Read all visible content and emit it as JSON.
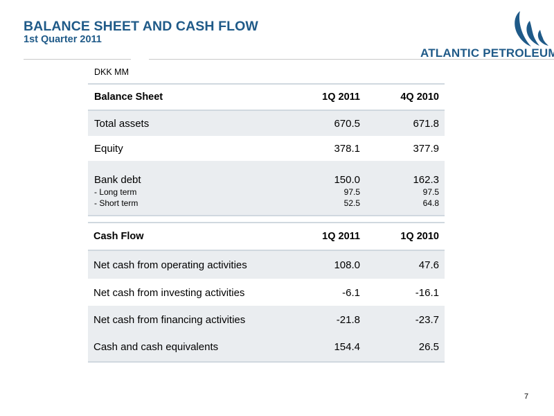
{
  "header": {
    "title": "BALANCE SHEET AND CASH FLOW",
    "subtitle": "1st Quarter 2011",
    "logo_text": "ATLANTIC PETROLEUM",
    "brand_color": "#1f5a88"
  },
  "unit_label": "DKK MM",
  "balance_sheet": {
    "headers": [
      "Balance Sheet",
      "1Q 2011",
      "4Q 2010"
    ],
    "rows": [
      {
        "label": "Total assets",
        "v1": "670.5",
        "v2": "671.8"
      },
      {
        "label": "Equity",
        "v1": "378.1",
        "v2": "377.9"
      },
      {
        "label": "Bank debt",
        "v1": "150.0",
        "v2": "162.3"
      }
    ],
    "sub_rows": [
      {
        "label": "- Long term",
        "v1": "97.5",
        "v2": "97.5"
      },
      {
        "label": "- Short term",
        "v1": "52.5",
        "v2": "64.8"
      }
    ]
  },
  "cash_flow": {
    "headers": [
      "Cash Flow",
      "1Q 2011",
      "1Q 2010"
    ],
    "rows": [
      {
        "label": "Net cash from operating activities",
        "v1": "108.0",
        "v2": "47.6"
      },
      {
        "label": "Net cash from investing activities",
        "v1": "-6.1",
        "v2": "-16.1"
      },
      {
        "label": "Net cash from financing activities",
        "v1": "-21.8",
        "v2": "-23.7"
      },
      {
        "label": "Cash and cash equivalents",
        "v1": "154.4",
        "v2": "26.5"
      }
    ]
  },
  "page_number": "7"
}
